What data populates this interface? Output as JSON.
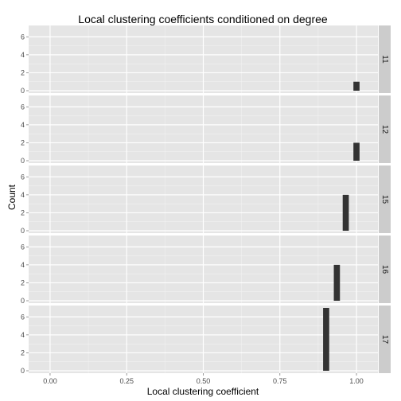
{
  "chart_data": {
    "type": "bar",
    "title": "Local clustering coefficients conditioned on degree",
    "xlabel": "Local clustering coefficient",
    "ylabel": "Count",
    "xlim": [
      -0.07,
      1.07
    ],
    "ylim": [
      0,
      7
    ],
    "x_ticks": [
      "0.00",
      "0.25",
      "0.50",
      "0.75",
      "1.00"
    ],
    "x_tick_values": [
      0,
      0.25,
      0.5,
      0.75,
      1.0
    ],
    "y_ticks": [
      "0",
      "2",
      "4",
      "6"
    ],
    "y_tick_values": [
      0,
      2,
      4,
      6
    ],
    "grid": true,
    "facets": [
      {
        "label": "11",
        "bars": [
          {
            "x": 1.0,
            "count": 1
          }
        ]
      },
      {
        "label": "12",
        "bars": [
          {
            "x": 1.0,
            "count": 2
          }
        ]
      },
      {
        "label": "15",
        "bars": [
          {
            "x": 0.965,
            "count": 4
          }
        ]
      },
      {
        "label": "16",
        "bars": [
          {
            "x": 0.936,
            "count": 4
          }
        ]
      },
      {
        "label": "17",
        "bars": [
          {
            "x": 0.901,
            "count": 7
          }
        ]
      }
    ]
  },
  "colors": {
    "panel_bg": "#e5e5e5",
    "grid_major": "#ffffff",
    "grid_minor": "#f2f2f2",
    "strip_bg": "#cccccc",
    "bar": "#333333"
  }
}
